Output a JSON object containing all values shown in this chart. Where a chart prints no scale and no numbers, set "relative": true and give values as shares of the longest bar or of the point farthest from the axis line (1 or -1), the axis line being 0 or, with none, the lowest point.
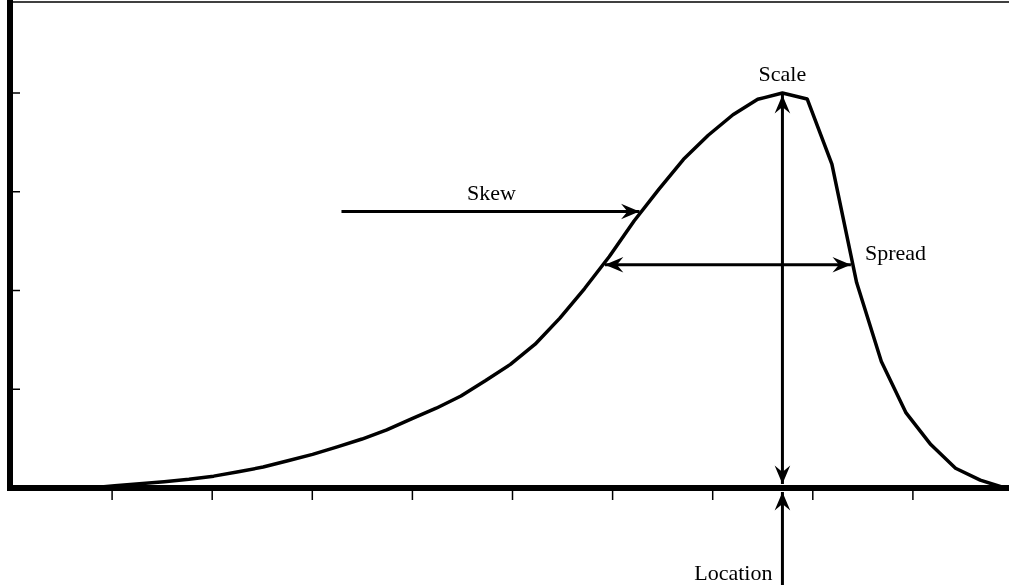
{
  "chart_data": {
    "type": "line",
    "relative": true,
    "color": "#000000",
    "marker": "none",
    "line_style": "solid",
    "categories": [
      null,
      null,
      null,
      null,
      null,
      null,
      null,
      null,
      null,
      null,
      null,
      null,
      null,
      null,
      null,
      null,
      null,
      null,
      null,
      null,
      null,
      null,
      null,
      null,
      null,
      null,
      null,
      null,
      null,
      null,
      null,
      null,
      null,
      null,
      null,
      null,
      null,
      null
    ],
    "values": [
      0,
      0.006,
      0.011,
      0.016,
      0.022,
      0.03,
      0.041,
      0.053,
      0.069,
      0.085,
      0.104,
      0.124,
      0.147,
      0.175,
      0.202,
      0.233,
      0.272,
      0.313,
      0.364,
      0.43,
      0.505,
      0.586,
      0.676,
      0.756,
      0.832,
      0.893,
      0.945,
      0.984,
      1,
      0.985,
      0.82,
      0.52,
      0.32,
      0.19,
      0.11,
      0.05,
      0.02,
      0
    ],
    "annotations": [
      "Scale",
      "Skew",
      "Spread",
      "Location"
    ]
  }
}
